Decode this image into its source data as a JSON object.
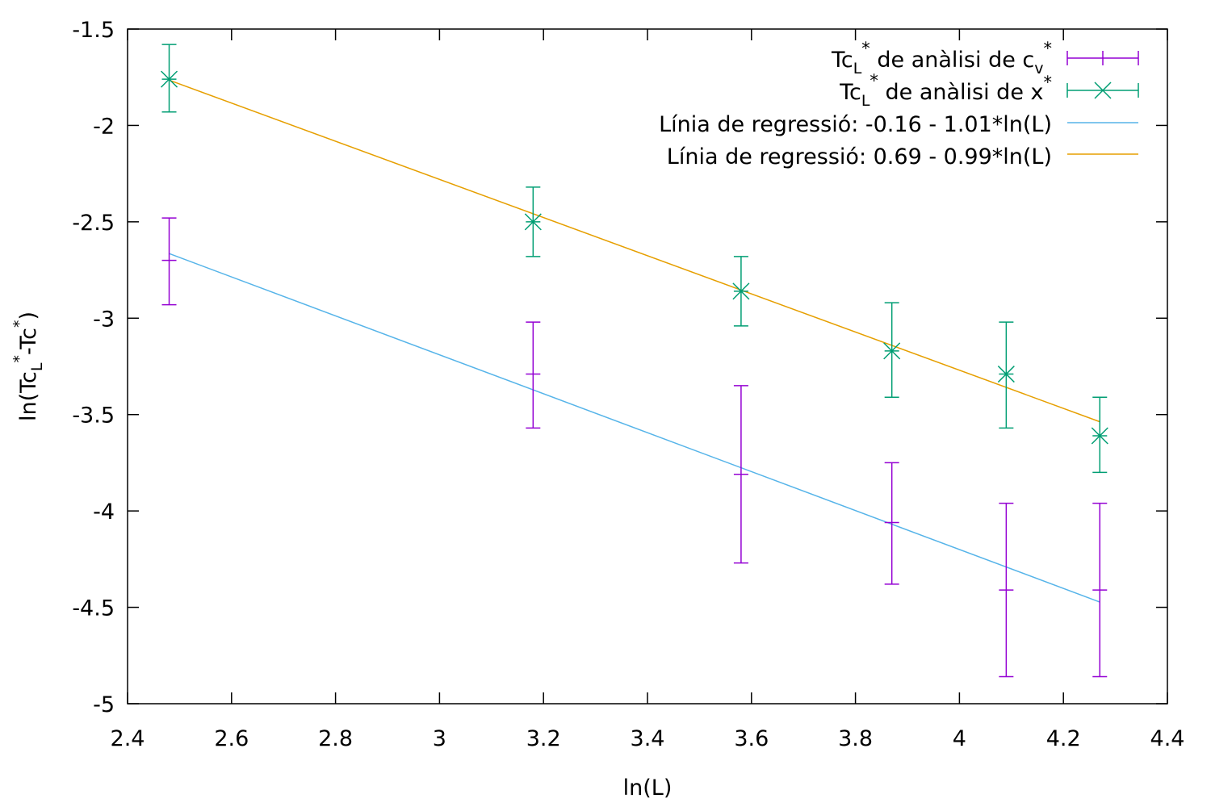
{
  "chart_data": {
    "type": "scatter",
    "xlabel": "ln(L)",
    "ylabel": {
      "base": "ln(Tc",
      "sub1": "L",
      "sup1": "*",
      "mid": "-Tc",
      "sup2": "*",
      "end": ")"
    },
    "xlim": [
      2.4,
      4.4
    ],
    "ylim": [
      -5,
      -1.5
    ],
    "x_ticks": [
      "2.4",
      "2.6",
      "2.8",
      "3",
      "3.2",
      "3.4",
      "3.6",
      "3.8",
      "4",
      "4.2",
      "4.4"
    ],
    "y_ticks": [
      "-1.5",
      "-2",
      "-2.5",
      "-3",
      "-3.5",
      "-4",
      "-4.5",
      "-5"
    ],
    "grid": false,
    "legend_position": "top-right",
    "series": [
      {
        "name": "Tc_L* de anàlisi de c_v*",
        "legend": {
          "a": "Tc",
          "b": "L",
          "c": "*",
          "d": " de anàlisi de  c",
          "e": "v",
          "f": "*"
        },
        "style": "errorbar",
        "color": "#9400d3",
        "x": [
          2.48,
          3.18,
          3.58,
          3.87,
          4.09,
          4.27
        ],
        "y": [
          -2.7,
          -3.29,
          -3.81,
          -4.06,
          -4.41,
          -4.41
        ],
        "ylow": [
          -2.93,
          -3.57,
          -4.27,
          -4.38,
          -4.86,
          -4.86
        ],
        "yhigh": [
          -2.48,
          -3.02,
          -3.35,
          -3.75,
          -3.96,
          -3.96
        ]
      },
      {
        "name": "Tc_L* de anàlisi de x*",
        "legend": {
          "a": "Tc",
          "b": "L",
          "c": "*",
          "d": " de anàlisi de x",
          "f": "*"
        },
        "style": "errorbar-cross",
        "color": "#009e73",
        "x": [
          2.48,
          3.18,
          3.58,
          3.87,
          4.09,
          4.27
        ],
        "y": [
          -1.76,
          -2.5,
          -2.86,
          -3.17,
          -3.29,
          -3.61
        ],
        "ylow": [
          -1.93,
          -2.68,
          -3.04,
          -3.41,
          -3.57,
          -3.8
        ],
        "yhigh": [
          -1.58,
          -2.32,
          -2.68,
          -2.92,
          -3.02,
          -3.41
        ]
      },
      {
        "name": "Línia de regressió: -0.16 - 1.01*ln(L)",
        "style": "line",
        "color": "#56b4e9",
        "intercept": -0.16,
        "slope": -1.01,
        "x_range": [
          2.48,
          4.27
        ]
      },
      {
        "name": "Línia de regressió: 0.69 - 0.99*ln(L)",
        "style": "line",
        "color": "#e69f00",
        "intercept": 0.69,
        "slope": -0.99,
        "x_range": [
          2.48,
          4.27
        ]
      }
    ]
  }
}
